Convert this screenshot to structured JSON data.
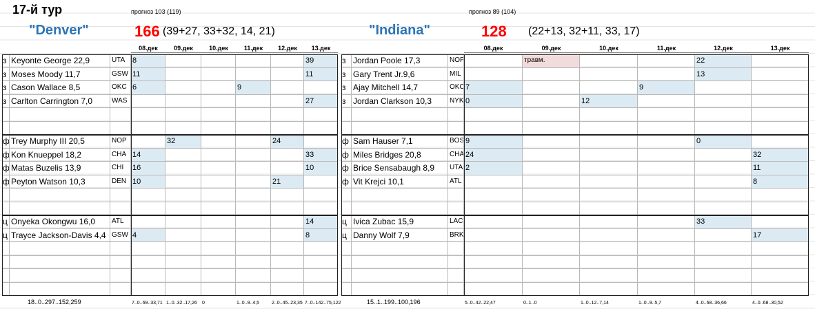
{
  "header": {
    "title": "17-й тур"
  },
  "teams": [
    {
      "forecast": "прогноз 103 (119)",
      "name": "\"Denver\"",
      "score": "166",
      "breakdown": "(39+27, 33+32, 14, 21)",
      "dates": [
        "08.дек",
        "09.дек",
        "10.дек",
        "11.дек",
        "12.дек",
        "13.дек"
      ],
      "groups": [
        {
          "rows": [
            {
              "pos": "з",
              "player": "Keyonte George 22,9",
              "team": "UTA",
              "cells": [
                8,
                null,
                null,
                null,
                null,
                39
              ]
            },
            {
              "pos": "з",
              "player": "Moses Moody 11,7",
              "team": "GSW",
              "cells": [
                11,
                null,
                null,
                null,
                null,
                11
              ]
            },
            {
              "pos": "з",
              "player": "Cason Wallace 8,5",
              "team": "OKC",
              "cells": [
                6,
                null,
                null,
                9,
                null,
                null
              ]
            },
            {
              "pos": "з",
              "player": "Carlton Carrington 7,0",
              "team": "WAS",
              "cells": [
                null,
                null,
                null,
                null,
                null,
                27
              ]
            }
          ]
        },
        {
          "rows": [
            {
              "pos": "ф",
              "player": "Trey Murphy III 20,5",
              "team": "NOP",
              "cells": [
                null,
                32,
                null,
                null,
                24,
                null
              ]
            },
            {
              "pos": "ф",
              "player": "Kon Knueppel 18,2",
              "team": "CHA",
              "cells": [
                14,
                null,
                null,
                null,
                null,
                33
              ]
            },
            {
              "pos": "ф",
              "player": "Matas Buzelis 13,9",
              "team": "CHI",
              "cells": [
                16,
                null,
                null,
                null,
                null,
                10
              ]
            },
            {
              "pos": "ф",
              "player": "Peyton Watson 10,3",
              "team": "DEN",
              "cells": [
                10,
                null,
                null,
                null,
                21,
                null
              ]
            }
          ]
        },
        {
          "rows": [
            {
              "pos": "ц",
              "player": "Onyeka Okongwu 16,0",
              "team": "ATL",
              "cells": [
                null,
                null,
                null,
                null,
                null,
                14
              ]
            },
            {
              "pos": "ц",
              "player": "Trayce Jackson-Davis 4,4",
              "team": "GSW",
              "cells": [
                4,
                null,
                null,
                null,
                null,
                8
              ]
            }
          ]
        }
      ],
      "footer": {
        "summary": "18..0..297..152,259",
        "days": [
          "7..0..69..33,71",
          "1..0..32..17,26",
          "0",
          "1..0..9..4,5",
          "2..0..45..23,35",
          "7..0..142..75,122"
        ]
      }
    },
    {
      "forecast": "прогноз 89 (104)",
      "name": "\"Indiana\"",
      "score": "128",
      "breakdown": "(22+13, 32+11, 33, 17)",
      "dates": [
        "08.дек",
        "09.дек",
        "10.дек",
        "11.дек",
        "12.дек",
        "13.дек"
      ],
      "groups": [
        {
          "rows": [
            {
              "pos": "з",
              "player": "Jordan Poole 17,3",
              "team": "NOP",
              "cells": [
                null,
                "травм.",
                null,
                null,
                22,
                null
              ]
            },
            {
              "pos": "з",
              "player": "Gary Trent Jr.9,6",
              "team": "MIL",
              "cells": [
                null,
                null,
                null,
                null,
                13,
                null
              ]
            },
            {
              "pos": "з",
              "player": "Ajay Mitchell 14,7",
              "team": "OKC",
              "cells": [
                7,
                null,
                null,
                9,
                null,
                null
              ]
            },
            {
              "pos": "з",
              "player": "Jordan Clarkson 10,3",
              "team": "NYK",
              "cells": [
                0,
                null,
                12,
                null,
                null,
                null
              ]
            }
          ]
        },
        {
          "rows": [
            {
              "pos": "ф",
              "player": "Sam Hauser 7,1",
              "team": "BOS",
              "cells": [
                9,
                null,
                null,
                null,
                0,
                null
              ]
            },
            {
              "pos": "ф",
              "player": "Miles Bridges 20,8",
              "team": "CHA",
              "cells": [
                24,
                null,
                null,
                null,
                null,
                32
              ]
            },
            {
              "pos": "ф",
              "player": "Brice Sensabaugh 8,9",
              "team": "UTA",
              "cells": [
                2,
                null,
                null,
                null,
                null,
                11
              ]
            },
            {
              "pos": "ф",
              "player": "Vit Krejci 10,1",
              "team": "ATL",
              "cells": [
                null,
                null,
                null,
                null,
                null,
                8
              ]
            }
          ]
        },
        {
          "rows": [
            {
              "pos": "ц",
              "player": "Ivica Zubac 15,9",
              "team": "LAC",
              "cells": [
                null,
                null,
                null,
                null,
                33,
                null
              ]
            },
            {
              "pos": "ц",
              "player": "Danny Wolf 7,9",
              "team": "BRK",
              "cells": [
                null,
                null,
                null,
                null,
                null,
                17
              ]
            }
          ]
        }
      ],
      "footer": {
        "summary": "15..1..199..100,196",
        "days": [
          "5..0..42..22,47",
          "0..1..0",
          "1..0..12..7,14",
          "1..0..9..5,7",
          "4..0..68..36,66",
          "4..0..68..30,52"
        ]
      }
    }
  ]
}
